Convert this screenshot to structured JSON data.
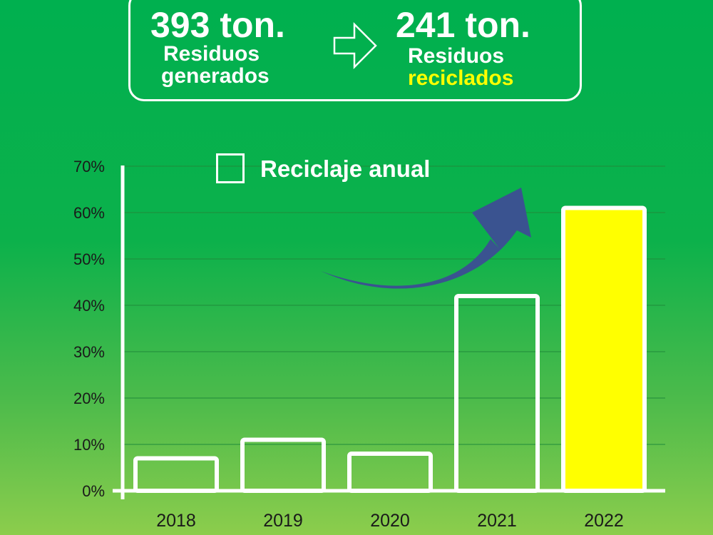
{
  "summary": {
    "generated_amount": "393 ton.",
    "generated_line1": "Residuos",
    "generated_line2": "generados",
    "recycled_amount": "241 ton.",
    "recycled_line1": "Residuos",
    "recycled_line2": "reciclados",
    "arrow_icon": "right-arrow-outline-icon",
    "trend_icon": "curved-up-arrow-icon"
  },
  "colors": {
    "background_top": "#00b04f",
    "background_bottom": "#8ccd4c",
    "bar_outline": "#ffffff",
    "highlight_bar": "#ffff00",
    "trend_arrow": "#3a5390",
    "gridline": "#1f8a3a"
  },
  "chart_data": {
    "type": "bar",
    "categories": [
      "2018",
      "2019",
      "2020",
      "2021",
      "2022"
    ],
    "series": [
      {
        "name": "Reciclaje anual",
        "values": [
          7,
          11,
          8,
          42,
          61
        ]
      }
    ],
    "highlighted_category": "2022",
    "xlabel": "",
    "ylabel": "",
    "ylim": [
      0,
      70
    ],
    "yticks": [
      "0%",
      "10%",
      "20%",
      "30%",
      "40%",
      "50%",
      "60%",
      "70%"
    ],
    "grid": true,
    "legend": {
      "label": "Reciclaje anual",
      "position": "top-center"
    }
  }
}
